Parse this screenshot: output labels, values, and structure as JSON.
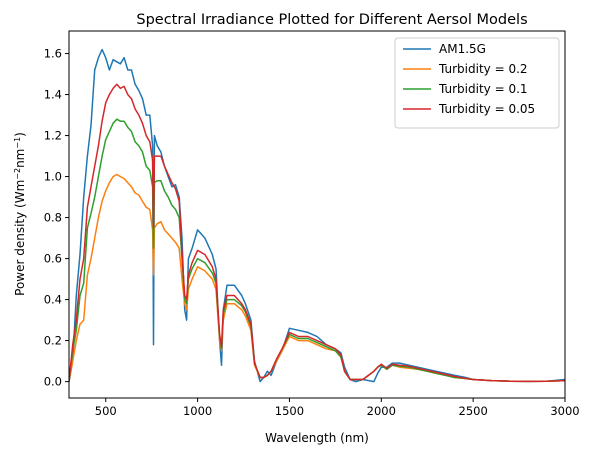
{
  "chart_data": {
    "type": "line",
    "title": "Spectral Irradiance Plotted for Different Aersol Models",
    "xlabel": "Wavelength (nm)",
    "ylabel": {
      "base": "Power density (Wm",
      "sup1": "−2",
      "mid": "nm",
      "sup2": "−1",
      "end": ")"
    },
    "xlim": [
      300,
      3000
    ],
    "ylim": [
      -0.08,
      1.71
    ],
    "xticks": [
      500,
      1000,
      1500,
      2000,
      2500,
      3000
    ],
    "yticks": [
      0.0,
      0.2,
      0.4,
      0.6,
      0.8,
      1.0,
      1.2,
      1.4,
      1.6
    ],
    "grid": false,
    "legend_position": "top-right",
    "series": [
      {
        "name": "AM1.5G",
        "color": "#1f77b4",
        "x": [
          300,
          320,
          340,
          360,
          380,
          400,
          420,
          440,
          460,
          480,
          500,
          520,
          540,
          560,
          580,
          600,
          620,
          640,
          660,
          680,
          700,
          720,
          740,
          755,
          760,
          765,
          780,
          800,
          820,
          840,
          860,
          880,
          900,
          915,
          930,
          940,
          950,
          970,
          1000,
          1040,
          1080,
          1100,
          1120,
          1130,
          1140,
          1160,
          1200,
          1240,
          1260,
          1290,
          1310,
          1340,
          1360,
          1380,
          1400,
          1430,
          1460,
          1500,
          1550,
          1600,
          1650,
          1700,
          1750,
          1780,
          1800,
          1830,
          1860,
          1900,
          1960,
          1980,
          2000,
          2030,
          2060,
          2100,
          2150,
          2200,
          2250,
          2300,
          2350,
          2400,
          2460,
          2500,
          2600,
          2700,
          2800,
          2900,
          3000
        ],
        "y": [
          0.0,
          0.1,
          0.42,
          0.62,
          0.9,
          1.1,
          1.25,
          1.52,
          1.58,
          1.62,
          1.58,
          1.52,
          1.57,
          1.56,
          1.55,
          1.58,
          1.52,
          1.52,
          1.45,
          1.42,
          1.38,
          1.3,
          1.3,
          1.15,
          0.18,
          1.2,
          1.15,
          1.12,
          1.05,
          1.0,
          0.95,
          0.96,
          0.9,
          0.7,
          0.35,
          0.3,
          0.6,
          0.65,
          0.74,
          0.7,
          0.62,
          0.55,
          0.2,
          0.08,
          0.35,
          0.47,
          0.47,
          0.42,
          0.38,
          0.3,
          0.1,
          0.0,
          0.02,
          0.05,
          0.03,
          0.1,
          0.15,
          0.26,
          0.25,
          0.24,
          0.22,
          0.18,
          0.16,
          0.14,
          0.07,
          0.01,
          0.0,
          0.01,
          0.0,
          0.04,
          0.07,
          0.07,
          0.09,
          0.09,
          0.08,
          0.07,
          0.06,
          0.05,
          0.04,
          0.03,
          0.02,
          0.01,
          0.005,
          0.002,
          0.001,
          0.002,
          0.01
        ]
      },
      {
        "name": "Turbidity = 0.2",
        "color": "#ff7f0e",
        "x": [
          300,
          320,
          340,
          360,
          380,
          400,
          420,
          440,
          460,
          480,
          500,
          520,
          540,
          560,
          580,
          600,
          620,
          640,
          660,
          680,
          700,
          720,
          740,
          755,
          760,
          765,
          780,
          800,
          820,
          840,
          860,
          880,
          900,
          915,
          930,
          940,
          950,
          970,
          1000,
          1040,
          1080,
          1100,
          1120,
          1130,
          1140,
          1160,
          1200,
          1240,
          1260,
          1290,
          1310,
          1340,
          1360,
          1380,
          1400,
          1430,
          1460,
          1500,
          1550,
          1600,
          1650,
          1700,
          1750,
          1780,
          1800,
          1830,
          1860,
          1900,
          1960,
          1980,
          2000,
          2030,
          2060,
          2100,
          2150,
          2200,
          2250,
          2300,
          2350,
          2400,
          2460,
          2500,
          2600,
          2700,
          2800,
          2900,
          3000
        ],
        "y": [
          0.0,
          0.1,
          0.2,
          0.28,
          0.3,
          0.52,
          0.6,
          0.7,
          0.8,
          0.88,
          0.93,
          0.97,
          1.0,
          1.01,
          1.0,
          0.99,
          0.97,
          0.95,
          0.92,
          0.91,
          0.88,
          0.85,
          0.84,
          0.74,
          0.52,
          0.75,
          0.77,
          0.78,
          0.74,
          0.72,
          0.7,
          0.68,
          0.65,
          0.5,
          0.38,
          0.35,
          0.45,
          0.5,
          0.56,
          0.54,
          0.5,
          0.45,
          0.2,
          0.15,
          0.3,
          0.38,
          0.38,
          0.35,
          0.32,
          0.25,
          0.08,
          0.02,
          0.02,
          0.03,
          0.05,
          0.1,
          0.15,
          0.22,
          0.2,
          0.2,
          0.18,
          0.16,
          0.15,
          0.12,
          0.05,
          0.01,
          0.01,
          0.01,
          0.05,
          0.07,
          0.08,
          0.06,
          0.08,
          0.07,
          0.065,
          0.06,
          0.05,
          0.04,
          0.03,
          0.02,
          0.015,
          0.01,
          0.005,
          0.002,
          0.001,
          0.002,
          0.005
        ]
      },
      {
        "name": "Turbidity = 0.1",
        "color": "#2ca02c",
        "x": [
          300,
          320,
          340,
          360,
          380,
          400,
          420,
          440,
          460,
          480,
          500,
          520,
          540,
          560,
          580,
          600,
          620,
          640,
          660,
          680,
          700,
          720,
          740,
          755,
          760,
          765,
          780,
          800,
          820,
          840,
          860,
          880,
          900,
          915,
          930,
          940,
          950,
          970,
          1000,
          1040,
          1080,
          1100,
          1120,
          1130,
          1140,
          1160,
          1200,
          1240,
          1260,
          1290,
          1310,
          1340,
          1360,
          1380,
          1400,
          1430,
          1460,
          1500,
          1550,
          1600,
          1650,
          1700,
          1750,
          1780,
          1800,
          1830,
          1860,
          1900,
          1960,
          1980,
          2000,
          2030,
          2060,
          2100,
          2150,
          2200,
          2250,
          2300,
          2350,
          2400,
          2460,
          2500,
          2600,
          2700,
          2800,
          2900,
          3000
        ],
        "y": [
          0.0,
          0.15,
          0.25,
          0.42,
          0.48,
          0.75,
          0.82,
          0.9,
          1.0,
          1.1,
          1.18,
          1.22,
          1.26,
          1.28,
          1.27,
          1.27,
          1.24,
          1.22,
          1.17,
          1.15,
          1.12,
          1.05,
          1.03,
          0.95,
          0.65,
          0.97,
          0.98,
          0.98,
          0.93,
          0.9,
          0.86,
          0.84,
          0.8,
          0.6,
          0.4,
          0.38,
          0.5,
          0.55,
          0.6,
          0.58,
          0.53,
          0.48,
          0.22,
          0.16,
          0.33,
          0.4,
          0.4,
          0.37,
          0.34,
          0.27,
          0.09,
          0.02,
          0.02,
          0.03,
          0.05,
          0.11,
          0.16,
          0.23,
          0.21,
          0.21,
          0.19,
          0.17,
          0.15,
          0.12,
          0.05,
          0.01,
          0.01,
          0.01,
          0.05,
          0.07,
          0.08,
          0.06,
          0.08,
          0.075,
          0.07,
          0.06,
          0.05,
          0.04,
          0.03,
          0.02,
          0.015,
          0.01,
          0.005,
          0.002,
          0.001,
          0.002,
          0.005
        ]
      },
      {
        "name": "Turbidity = 0.05",
        "color": "#d62728",
        "x": [
          300,
          320,
          340,
          360,
          380,
          400,
          420,
          440,
          460,
          480,
          500,
          520,
          540,
          560,
          580,
          600,
          620,
          640,
          660,
          680,
          700,
          720,
          740,
          755,
          760,
          765,
          780,
          800,
          820,
          840,
          860,
          880,
          900,
          915,
          930,
          940,
          950,
          970,
          1000,
          1040,
          1080,
          1100,
          1120,
          1130,
          1140,
          1160,
          1200,
          1240,
          1260,
          1290,
          1310,
          1340,
          1360,
          1380,
          1400,
          1430,
          1460,
          1500,
          1550,
          1600,
          1650,
          1700,
          1750,
          1780,
          1800,
          1830,
          1860,
          1900,
          1960,
          1980,
          2000,
          2030,
          2060,
          2100,
          2150,
          2200,
          2250,
          2300,
          2350,
          2400,
          2460,
          2500,
          2600,
          2700,
          2800,
          2900,
          3000
        ],
        "y": [
          0.0,
          0.18,
          0.3,
          0.5,
          0.6,
          0.85,
          0.95,
          1.05,
          1.15,
          1.27,
          1.36,
          1.4,
          1.43,
          1.45,
          1.43,
          1.44,
          1.4,
          1.38,
          1.33,
          1.3,
          1.26,
          1.2,
          1.17,
          1.08,
          0.75,
          1.1,
          1.1,
          1.1,
          1.05,
          1.01,
          0.97,
          0.94,
          0.88,
          0.62,
          0.42,
          0.4,
          0.52,
          0.58,
          0.64,
          0.62,
          0.56,
          0.5,
          0.23,
          0.17,
          0.35,
          0.42,
          0.42,
          0.38,
          0.35,
          0.28,
          0.09,
          0.02,
          0.02,
          0.03,
          0.05,
          0.11,
          0.16,
          0.24,
          0.22,
          0.22,
          0.2,
          0.18,
          0.16,
          0.13,
          0.05,
          0.01,
          0.01,
          0.01,
          0.05,
          0.07,
          0.085,
          0.065,
          0.085,
          0.08,
          0.075,
          0.065,
          0.055,
          0.045,
          0.035,
          0.025,
          0.015,
          0.01,
          0.005,
          0.002,
          0.001,
          0.002,
          0.005
        ]
      }
    ]
  }
}
